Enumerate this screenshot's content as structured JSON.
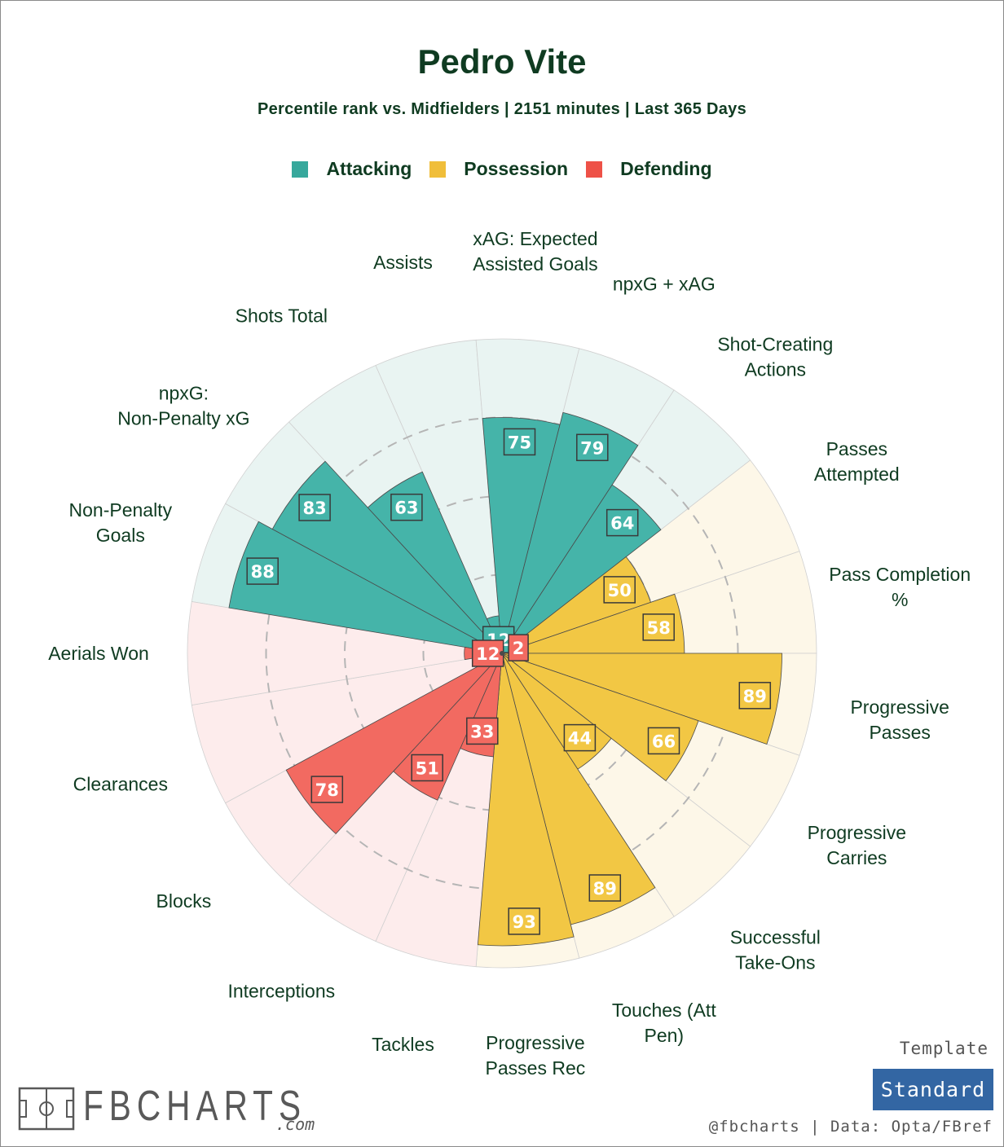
{
  "title": "Pedro Vite",
  "subtitle": "Percentile rank vs. Midfielders | 2151 minutes | Last 365 Days",
  "legend": [
    {
      "label": "Attacking",
      "color": "#37a89c"
    },
    {
      "label": "Possession",
      "color": "#f0be3a"
    },
    {
      "label": "Defending",
      "color": "#ee5147"
    }
  ],
  "template_label": "Template",
  "template_value": "Standard",
  "credit": "@fbcharts | Data: Opta/FBref",
  "brand": {
    "name": "FBCHARTS",
    "suffix": ".com"
  },
  "chart_data": {
    "type": "polar-bar",
    "rlim": [
      0,
      100
    ],
    "grid_levels": [
      25,
      50,
      75
    ],
    "start_at": "left, clockwise",
    "colors": {
      "attacking_bar": "#45b4a9",
      "attacking_bg": "#e9f4f2",
      "possession_bar": "#f2c744",
      "possession_bg": "#fdf7e8",
      "defending_bar": "#f26a61",
      "defending_bg": "#fdecec",
      "label_text": "#0f3b21"
    },
    "metrics": [
      {
        "label": "Non-Penalty Goals",
        "value": 88,
        "group": "Attacking"
      },
      {
        "label": "npxG: Non-Penalty xG",
        "value": 83,
        "group": "Attacking"
      },
      {
        "label": "Shots Total",
        "value": 63,
        "group": "Attacking"
      },
      {
        "label": "Assists",
        "value": 12,
        "group": "Attacking"
      },
      {
        "label": "xAG: Expected Assisted Goals",
        "value": 75,
        "group": "Attacking"
      },
      {
        "label": "npxG + xAG",
        "value": 79,
        "group": "Attacking"
      },
      {
        "label": "Shot-Creating Actions",
        "value": 64,
        "group": "Attacking"
      },
      {
        "label": "Passes Attempted",
        "value": 50,
        "group": "Possession"
      },
      {
        "label": "Pass Completion %",
        "value": 58,
        "group": "Possession"
      },
      {
        "label": "Progressive Passes",
        "value": 89,
        "group": "Possession"
      },
      {
        "label": "Progressive Carries",
        "value": 66,
        "group": "Possession"
      },
      {
        "label": "Successful Take-Ons",
        "value": 44,
        "group": "Possession"
      },
      {
        "label": "Touches (Att Pen)",
        "value": 89,
        "group": "Possession"
      },
      {
        "label": "Progressive Passes Rec",
        "value": 93,
        "group": "Possession"
      },
      {
        "label": "Tackles",
        "value": 33,
        "group": "Defending"
      },
      {
        "label": "Interceptions",
        "value": 51,
        "group": "Defending"
      },
      {
        "label": "Blocks",
        "value": 78,
        "group": "Defending"
      },
      {
        "label": "Clearances",
        "value": 2,
        "group": "Defending"
      },
      {
        "label": "Aerials Won",
        "value": 12,
        "group": "Defending"
      }
    ]
  }
}
